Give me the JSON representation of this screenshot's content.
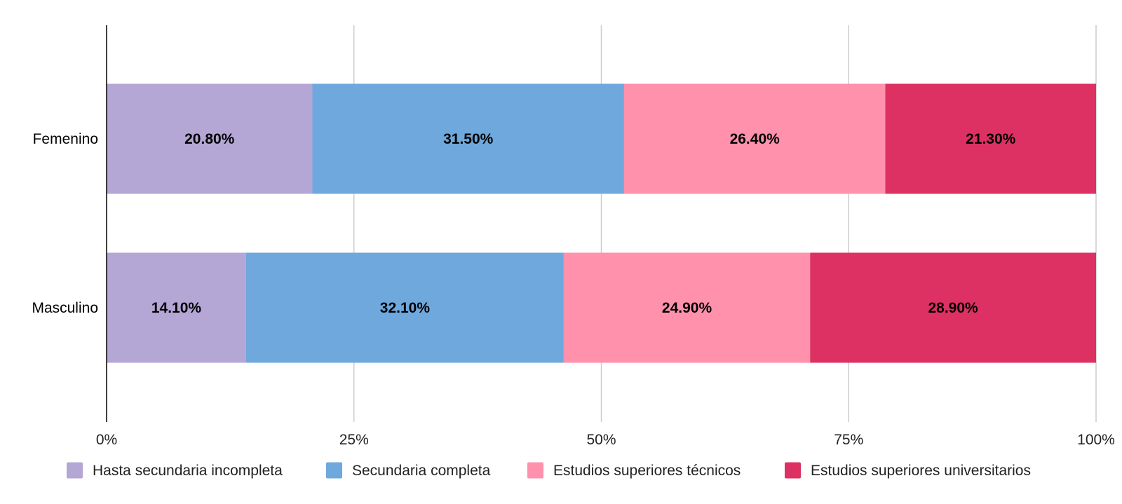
{
  "chart_data": {
    "type": "bar",
    "orientation": "horizontal",
    "stacked": "percent",
    "title": "",
    "xlabel": "",
    "ylabel": "",
    "categories": [
      "Femenino",
      "Masculino"
    ],
    "series": [
      {
        "name": "Hasta secundaria incompleta",
        "values": [
          20.8,
          14.1
        ],
        "labels": [
          "20.80%",
          "14.10%"
        ],
        "color": "#b4a7d6"
      },
      {
        "name": "Secundaria completa",
        "values": [
          31.5,
          32.1
        ],
        "labels": [
          "31.50%",
          "32.10%"
        ],
        "color": "#6fa8dc"
      },
      {
        "name": "Estudios superiores técnicos",
        "values": [
          26.4,
          24.9
        ],
        "labels": [
          "26.40%",
          "24.90%"
        ],
        "color": "#ff91ad"
      },
      {
        "name": "Estudios superiores universitarios",
        "values": [
          21.3,
          28.9
        ],
        "labels": [
          "21.30%",
          "28.90%"
        ],
        "color": "#de3163"
      }
    ],
    "xlim": [
      0,
      100
    ],
    "x_ticks": [
      "0%",
      "25%",
      "50%",
      "75%",
      "100%"
    ],
    "grid": true,
    "legend_position": "bottom"
  }
}
